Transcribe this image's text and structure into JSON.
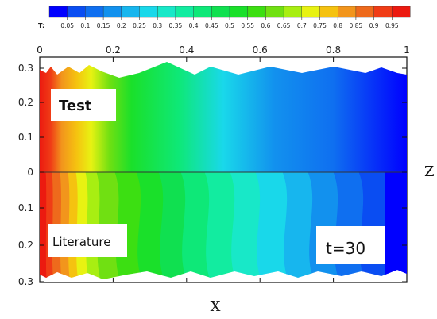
{
  "chart_data": {
    "type": "heatmap",
    "legend": {
      "title": "T:",
      "levels": [
        "0.05",
        "0.1",
        "0.15",
        "0.2",
        "0.25",
        "0.3",
        "0.35",
        "0.4",
        "0.45",
        "0.5",
        "0.55",
        "0.6",
        "0.65",
        "0.7",
        "0.75",
        "0.8",
        "0.85",
        "0.9",
        "0.95"
      ],
      "colors": [
        "#0000ff",
        "#0a4df2",
        "#0f6ff0",
        "#1291ee",
        "#17b6ee",
        "#19d8ea",
        "#18e8c8",
        "#12eca0",
        "#0ee878",
        "#10e050",
        "#1ae02a",
        "#3cdf12",
        "#70e012",
        "#a8ee12",
        "#e8f212",
        "#f5c210",
        "#f2951c",
        "#ee6a1c",
        "#f03c16",
        "#ec1a10"
      ]
    },
    "xlabel": "X",
    "zlabel": "Z",
    "x_ticks": [
      "0",
      "0.2",
      "0.4",
      "0.6",
      "0.8",
      "1"
    ],
    "z_ticks": [
      "0.3",
      "0.2",
      "0.1",
      "0",
      "0.1",
      "0.2",
      "0.3"
    ],
    "panels": [
      {
        "label": "Test",
        "kind": "smooth"
      },
      {
        "label": "Literature",
        "kind": "banded"
      }
    ],
    "annotation": "t=30"
  }
}
